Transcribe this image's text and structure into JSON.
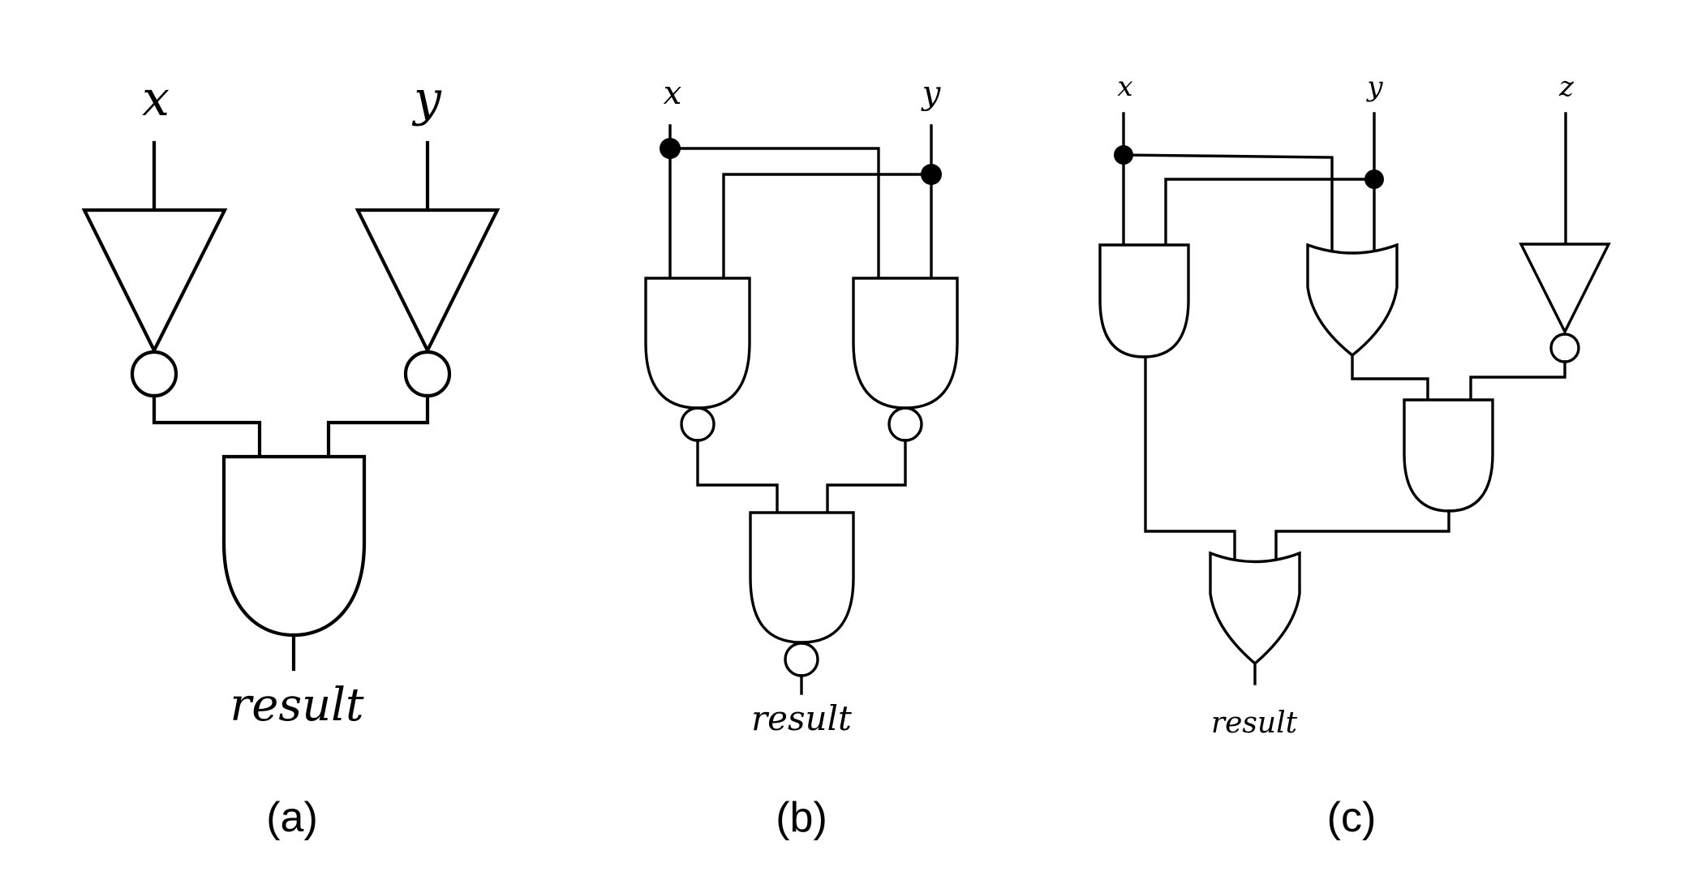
{
  "figure": {
    "panels": [
      {
        "caption": "(a)",
        "inputs": [
          "x",
          "y"
        ],
        "output": "result",
        "gates": [
          "NOT",
          "NOT",
          "AND"
        ]
      },
      {
        "caption": "(b)",
        "inputs": [
          "x",
          "y"
        ],
        "output": "result",
        "gates": [
          "NAND",
          "NAND",
          "NAND"
        ]
      },
      {
        "caption": "(c)",
        "inputs": [
          "x",
          "y",
          "z"
        ],
        "output": "result",
        "gates": [
          "AND",
          "OR",
          "NOT",
          "AND",
          "OR"
        ]
      }
    ]
  }
}
